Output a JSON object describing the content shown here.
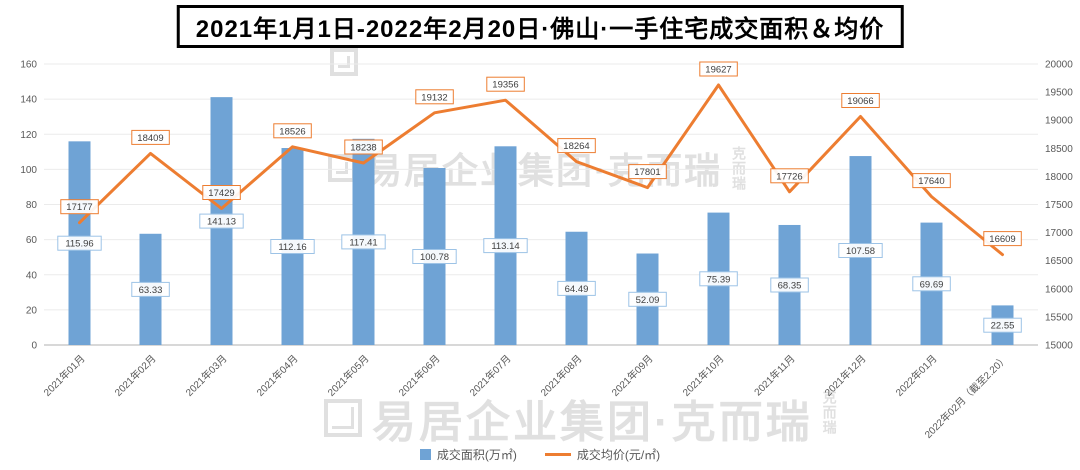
{
  "chart_data": {
    "type": "bar+line",
    "title": "2021年1月1日-2022年2月20日·佛山·一手住宅成交面积＆均价",
    "categories": [
      "2021年01月",
      "2021年02月",
      "2021年03月",
      "2021年04月",
      "2021年05月",
      "2021年06月",
      "2021年07月",
      "2021年08月",
      "2021年09月",
      "2021年10月",
      "2021年11月",
      "2021年12月",
      "2022年01月",
      "2022年02月（截至2.20）"
    ],
    "series": [
      {
        "name": "成交面积(万㎡)",
        "type": "bar",
        "axis": "left",
        "values": [
          115.96,
          63.33,
          141.13,
          112.16,
          117.41,
          100.78,
          113.14,
          64.49,
          52.09,
          75.39,
          68.35,
          107.58,
          69.69,
          22.55
        ]
      },
      {
        "name": "成交均价(元/㎡)",
        "type": "line",
        "axis": "right",
        "values": [
          17177,
          18409,
          17429,
          18526,
          18238,
          19132,
          19356,
          18264,
          17801,
          19627,
          17726,
          19066,
          17640,
          16609
        ]
      }
    ],
    "left_axis": {
      "min": 0,
      "max": 160,
      "step": 20
    },
    "right_axis": {
      "min": 15000,
      "max": 20000,
      "step": 500
    },
    "grid": true,
    "legend_position": "bottom",
    "legend": {
      "bar_label": "成交面积(万㎡)",
      "line_label": "成交均价(元/㎡)"
    },
    "colors": {
      "bar": "#6FA3D5",
      "line": "#ED7D31",
      "axis_text": "#595959"
    }
  },
  "watermark": {
    "text": "易居企业集团·克而瑞",
    "vertical_text": "克而瑞"
  }
}
